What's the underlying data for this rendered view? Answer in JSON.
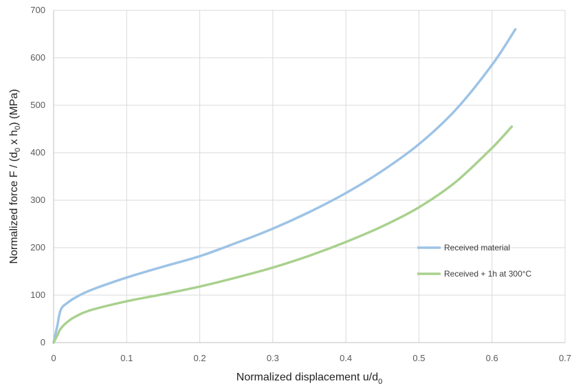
{
  "chart_data": {
    "type": "line",
    "title": "",
    "xlabel": "Normalized displacement u/d",
    "xlabel_sub": "0",
    "ylabel_parts": [
      {
        "t": "Normalized force F / (d",
        "sub": false
      },
      {
        "t": "0",
        "sub": true
      },
      {
        "t": " x h",
        "sub": false
      },
      {
        "t": "0",
        "sub": true
      },
      {
        "t": ")  (MPa)",
        "sub": false
      }
    ],
    "xlim": [
      0,
      0.7
    ],
    "ylim": [
      0,
      700
    ],
    "x_ticks": [
      0,
      0.1,
      0.2,
      0.3,
      0.4,
      0.5,
      0.6,
      0.7
    ],
    "y_ticks": [
      0,
      100,
      200,
      300,
      400,
      500,
      600,
      700
    ],
    "grid": true,
    "legend_position": "right",
    "series": [
      {
        "name": "Received material",
        "color": "#9dc3e6",
        "x": [
          0,
          0.005,
          0.01,
          0.02,
          0.03,
          0.05,
          0.1,
          0.15,
          0.2,
          0.25,
          0.3,
          0.35,
          0.4,
          0.45,
          0.5,
          0.55,
          0.6,
          0.632
        ],
        "y": [
          0,
          35,
          70,
          85,
          95,
          110,
          137,
          160,
          182,
          210,
          240,
          275,
          315,
          362,
          418,
          490,
          585,
          660
        ]
      },
      {
        "name": "Received + 1h at 300°C",
        "color": "#a9d18e",
        "x": [
          0,
          0.005,
          0.01,
          0.02,
          0.03,
          0.05,
          0.1,
          0.15,
          0.2,
          0.25,
          0.3,
          0.35,
          0.4,
          0.45,
          0.5,
          0.55,
          0.6,
          0.627
        ],
        "y": [
          0,
          15,
          30,
          45,
          55,
          68,
          87,
          102,
          118,
          137,
          158,
          183,
          212,
          245,
          285,
          338,
          410,
          455
        ]
      }
    ]
  }
}
